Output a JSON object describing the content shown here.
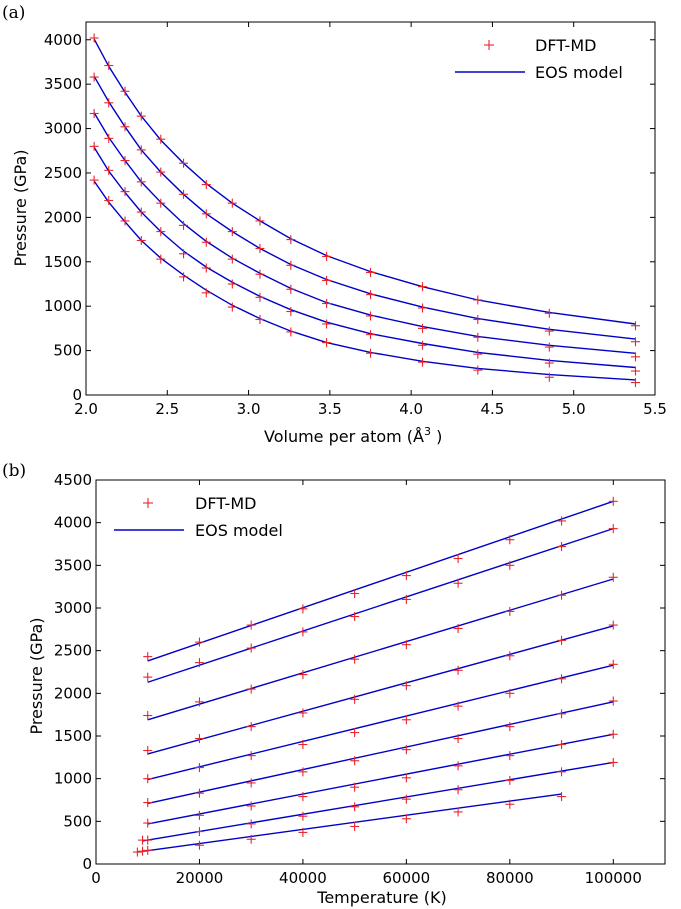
{
  "chart_data": [
    {
      "type": "line",
      "panel_label": "(a)",
      "xlabel": "Volume per atom (",
      "xlabel_unit": "Å",
      "xlabel_exp": "3",
      "xlabel_close": " )",
      "ylabel": "Pressure (GPa)",
      "xlim": [
        2.0,
        5.5
      ],
      "ylim": [
        0,
        4200
      ],
      "xticks": [
        "2.0",
        "2.5",
        "3.0",
        "3.5",
        "4.0",
        "4.5",
        "5.0",
        "5.5"
      ],
      "xtick_values": [
        2.0,
        2.5,
        3.0,
        3.5,
        4.0,
        4.5,
        5.0,
        5.5
      ],
      "yticks": [
        "0",
        "500",
        "1000",
        "1500",
        "2000",
        "2500",
        "3000",
        "3500",
        "4000"
      ],
      "ytick_values": [
        0,
        500,
        1000,
        1500,
        2000,
        2500,
        3000,
        3500,
        4000
      ],
      "legend": {
        "position": "top-right",
        "markers_label": "DFT-MD",
        "line_label": "EOS model"
      },
      "colors": {
        "markers": "#e8252d",
        "line": "#0000c8"
      },
      "x": [
        2.05,
        2.14,
        2.24,
        2.34,
        2.46,
        2.6,
        2.74,
        2.9,
        3.07,
        3.26,
        3.48,
        3.75,
        4.07,
        4.41,
        4.85,
        5.38
      ],
      "series": [
        {
          "markers": [
            4020,
            3710,
            3420,
            3140,
            2880,
            2610,
            2370,
            2160,
            1960,
            1750,
            1560,
            1380,
            1220,
            1070,
            920,
            780
          ],
          "line": [
            4010,
            3700,
            3410,
            3140,
            2870,
            2610,
            2380,
            2160,
            1960,
            1760,
            1570,
            1390,
            1220,
            1070,
            930,
            800
          ]
        },
        {
          "markers": [
            3580,
            3290,
            3020,
            2760,
            2510,
            2260,
            2040,
            1840,
            1650,
            1460,
            1290,
            1130,
            980,
            850,
            720,
            600
          ],
          "line": [
            3590,
            3300,
            3020,
            2760,
            2510,
            2260,
            2040,
            1840,
            1650,
            1470,
            1300,
            1140,
            990,
            860,
            740,
            630
          ]
        },
        {
          "markers": [
            3170,
            2890,
            2640,
            2400,
            2160,
            1910,
            1720,
            1530,
            1360,
            1190,
            1030,
            890,
            750,
            650,
            540,
            430
          ],
          "line": [
            3180,
            2900,
            2640,
            2400,
            2170,
            1930,
            1730,
            1540,
            1370,
            1200,
            1040,
            900,
            770,
            660,
            560,
            470
          ]
        },
        {
          "markers": [
            2800,
            2530,
            2290,
            2060,
            1840,
            1590,
            1430,
            1250,
            1100,
            940,
            800,
            680,
            560,
            460,
            360,
            270
          ],
          "line": [
            2790,
            2520,
            2280,
            2060,
            1840,
            1620,
            1440,
            1270,
            1110,
            960,
            820,
            690,
            580,
            480,
            390,
            310
          ]
        },
        {
          "markers": [
            2420,
            2190,
            1960,
            1740,
            1530,
            1330,
            1150,
            990,
            850,
            710,
            590,
            470,
            370,
            280,
            200,
            140
          ],
          "line": [
            2410,
            2170,
            1950,
            1740,
            1540,
            1350,
            1180,
            1010,
            860,
            720,
            590,
            480,
            380,
            300,
            230,
            170
          ]
        }
      ]
    },
    {
      "type": "line",
      "panel_label": "(b)",
      "xlabel": "Temperature (K)",
      "ylabel": "Pressure (GPa)",
      "xlim": [
        0,
        110000
      ],
      "ylim": [
        0,
        4500
      ],
      "xticks": [
        "0",
        "20000",
        "40000",
        "60000",
        "80000",
        "100000"
      ],
      "xtick_values": [
        0,
        20000,
        40000,
        60000,
        80000,
        100000
      ],
      "yticks": [
        "0",
        "500",
        "1000",
        "1500",
        "2000",
        "2500",
        "3000",
        "3500",
        "4000",
        "4500"
      ],
      "ytick_values": [
        0,
        500,
        1000,
        1500,
        2000,
        2500,
        3000,
        3500,
        4000,
        4500
      ],
      "legend": {
        "position": "top-left",
        "markers_label": "DFT-MD",
        "line_label": "EOS model"
      },
      "colors": {
        "markers": "#e8252d",
        "line": "#0000c8"
      },
      "series": [
        {
          "line_x": [
            10000,
            100000
          ],
          "line_y": [
            2380,
            4250
          ],
          "x": [
            10000,
            20000,
            30000,
            40000,
            50000,
            60000,
            70000,
            80000,
            90000,
            100000
          ],
          "y": [
            2430,
            2600,
            2800,
            2990,
            3170,
            3380,
            3580,
            3800,
            4020,
            4250
          ]
        },
        {
          "line_x": [
            10000,
            100000
          ],
          "line_y": [
            2130,
            3930
          ],
          "x": [
            10000,
            20000,
            30000,
            40000,
            50000,
            60000,
            70000,
            80000,
            90000,
            100000
          ],
          "y": [
            2190,
            2360,
            2530,
            2720,
            2900,
            3100,
            3290,
            3500,
            3720,
            3930
          ]
        },
        {
          "line_x": [
            10000,
            100000
          ],
          "line_y": [
            1690,
            3340
          ],
          "x": [
            10000,
            20000,
            30000,
            40000,
            50000,
            60000,
            70000,
            80000,
            90000,
            100000
          ],
          "y": [
            1740,
            1900,
            2050,
            2220,
            2400,
            2570,
            2760,
            2960,
            3150,
            3360
          ]
        },
        {
          "line_x": [
            10000,
            100000
          ],
          "line_y": [
            1290,
            2790
          ],
          "x": [
            10000,
            20000,
            30000,
            40000,
            50000,
            60000,
            70000,
            80000,
            90000,
            100000
          ],
          "y": [
            1330,
            1470,
            1610,
            1770,
            1930,
            2090,
            2270,
            2440,
            2620,
            2800
          ]
        },
        {
          "line_x": [
            10000,
            100000
          ],
          "line_y": [
            990,
            2330
          ],
          "x": [
            10000,
            20000,
            30000,
            40000,
            50000,
            60000,
            70000,
            80000,
            90000,
            100000
          ],
          "y": [
            1000,
            1130,
            1270,
            1400,
            1540,
            1690,
            1850,
            2000,
            2170,
            2340
          ]
        },
        {
          "line_x": [
            10000,
            100000
          ],
          "line_y": [
            710,
            1900
          ],
          "x": [
            10000,
            20000,
            30000,
            40000,
            50000,
            60000,
            70000,
            80000,
            90000,
            100000
          ],
          "y": [
            720,
            830,
            950,
            1080,
            1210,
            1340,
            1470,
            1610,
            1760,
            1910
          ]
        },
        {
          "line_x": [
            10000,
            100000
          ],
          "line_y": [
            470,
            1520
          ],
          "x": [
            10000,
            20000,
            30000,
            40000,
            50000,
            60000,
            70000,
            80000,
            90000,
            100000
          ],
          "y": [
            480,
            570,
            680,
            790,
            900,
            1010,
            1150,
            1270,
            1400,
            1520
          ]
        },
        {
          "line_x": [
            9000,
            100000
          ],
          "line_y": [
            270,
            1190
          ],
          "x": [
            9000,
            10000,
            20000,
            30000,
            40000,
            50000,
            60000,
            70000,
            80000,
            90000,
            100000
          ],
          "y": [
            280,
            280,
            380,
            470,
            560,
            670,
            760,
            870,
            980,
            1080,
            1190
          ]
        },
        {
          "line_x": [
            8000,
            90000
          ],
          "line_y": [
            140,
            820
          ],
          "x": [
            8000,
            9000,
            10000,
            20000,
            30000,
            40000,
            50000,
            60000,
            70000,
            80000,
            90000
          ],
          "y": [
            140,
            150,
            160,
            220,
            290,
            370,
            440,
            530,
            610,
            700,
            790
          ]
        }
      ]
    }
  ]
}
